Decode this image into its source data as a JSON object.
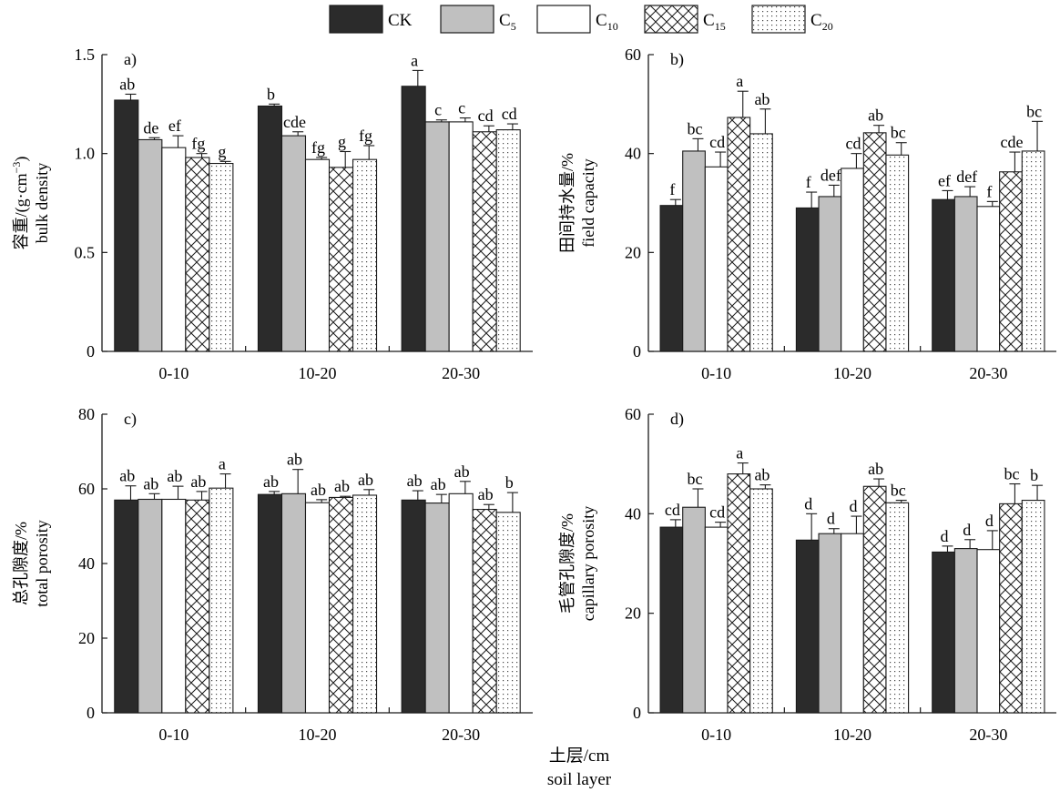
{
  "figure": {
    "xlabel_cn": "土层/cm",
    "xlabel_en": "soil layer"
  },
  "legend": {
    "items": [
      {
        "key": "CK",
        "label": "CK",
        "sub": "",
        "fill": "dark"
      },
      {
        "key": "C5",
        "label": "C",
        "sub": "5",
        "fill": "gray"
      },
      {
        "key": "C10",
        "label": "C",
        "sub": "10",
        "fill": "white"
      },
      {
        "key": "C15",
        "label": "C",
        "sub": "15",
        "fill": "crosshatch"
      },
      {
        "key": "C20",
        "label": "C",
        "sub": "20",
        "fill": "dots"
      }
    ]
  },
  "colors": {
    "CK": "#2b2b2b",
    "C5": "#c0c0c0",
    "C10": "#ffffff",
    "stroke": "#1a1a1a"
  },
  "chart_data": [
    {
      "type": "bar",
      "panel": "a)",
      "ylabel_cn": "容重/(g·cm",
      "ylabel_sup": "−3",
      "ylabel_tail": ")",
      "ylabel_en": "bulk density",
      "ylim": [
        0,
        1.5
      ],
      "yticks": [
        0,
        0.5,
        1.0,
        1.5
      ],
      "ytick_labels": [
        "0",
        "0.5",
        "1.0",
        "1.5"
      ],
      "categories": [
        "0-10",
        "10-20",
        "20-30"
      ],
      "series": [
        {
          "name": "CK",
          "values": [
            1.27,
            1.24,
            1.34
          ],
          "errors": [
            0.03,
            0.01,
            0.08
          ],
          "letters": [
            "ab",
            "b",
            "a"
          ]
        },
        {
          "name": "C5",
          "values": [
            1.07,
            1.09,
            1.16
          ],
          "errors": [
            0.01,
            0.02,
            0.01
          ],
          "letters": [
            "de",
            "cde",
            "c"
          ]
        },
        {
          "name": "C10",
          "values": [
            1.03,
            0.97,
            1.16
          ],
          "errors": [
            0.06,
            0.01,
            0.02
          ],
          "letters": [
            "ef",
            "fg",
            "c"
          ]
        },
        {
          "name": "C15",
          "values": [
            0.98,
            0.93,
            1.11
          ],
          "errors": [
            0.02,
            0.08,
            0.03
          ],
          "letters": [
            "fg",
            "g",
            "cd"
          ]
        },
        {
          "name": "C20",
          "values": [
            0.95,
            0.97,
            1.12
          ],
          "errors": [
            0.01,
            0.07,
            0.03
          ],
          "letters": [
            "g",
            "fg",
            "cd"
          ]
        }
      ]
    },
    {
      "type": "bar",
      "panel": "b)",
      "ylabel_cn": "田间持水量/%",
      "ylabel_sup": "",
      "ylabel_tail": "",
      "ylabel_en": "field capacity",
      "ylim": [
        0,
        60
      ],
      "yticks": [
        0,
        20,
        40,
        60
      ],
      "ytick_labels": [
        "0",
        "20",
        "40",
        "60"
      ],
      "categories": [
        "0-10",
        "10-20",
        "20-30"
      ],
      "series": [
        {
          "name": "CK",
          "values": [
            29.5,
            29.0,
            30.7
          ],
          "errors": [
            1.2,
            3.2,
            1.8
          ],
          "letters": [
            "f",
            "f",
            "ef"
          ]
        },
        {
          "name": "C5",
          "values": [
            40.5,
            31.3,
            31.3
          ],
          "errors": [
            2.5,
            2.3,
            2.0
          ],
          "letters": [
            "bc",
            "def",
            "def"
          ]
        },
        {
          "name": "C10",
          "values": [
            37.3,
            37.0,
            29.3
          ],
          "errors": [
            3.0,
            3.0,
            1.0
          ],
          "letters": [
            "cd",
            "cd",
            "f"
          ]
        },
        {
          "name": "C15",
          "values": [
            47.3,
            44.2,
            36.3
          ],
          "errors": [
            5.3,
            1.5,
            4.0
          ],
          "letters": [
            "a",
            "ab",
            "cde"
          ]
        },
        {
          "name": "C20",
          "values": [
            44.0,
            39.7,
            40.5
          ],
          "errors": [
            5.0,
            2.5,
            6.0
          ],
          "letters": [
            "ab",
            "bc",
            "bc"
          ]
        }
      ]
    },
    {
      "type": "bar",
      "panel": "c)",
      "ylabel_cn": "总孔隙度/%",
      "ylabel_sup": "",
      "ylabel_tail": "",
      "ylabel_en": "total porosity",
      "ylim": [
        0,
        80
      ],
      "yticks": [
        0,
        20,
        40,
        60,
        80
      ],
      "ytick_labels": [
        "0",
        "20",
        "40",
        "60",
        "80"
      ],
      "categories": [
        "0-10",
        "10-20",
        "20-30"
      ],
      "series": [
        {
          "name": "CK",
          "values": [
            57.0,
            58.5,
            57.0
          ],
          "errors": [
            3.8,
            0.8,
            2.5
          ],
          "letters": [
            "ab",
            "ab",
            "ab"
          ]
        },
        {
          "name": "C5",
          "values": [
            57.2,
            58.7,
            56.2
          ],
          "errors": [
            1.5,
            6.5,
            2.3
          ],
          "letters": [
            "ab",
            "ab",
            "ab"
          ]
        },
        {
          "name": "C10",
          "values": [
            57.2,
            56.3,
            58.7
          ],
          "errors": [
            3.5,
            0.8,
            3.3
          ],
          "letters": [
            "ab",
            "ab",
            "ab"
          ]
        },
        {
          "name": "C15",
          "values": [
            57.0,
            57.7,
            54.5
          ],
          "errors": [
            2.3,
            0.3,
            1.3
          ],
          "letters": [
            "ab",
            "ab",
            "ab"
          ]
        },
        {
          "name": "C20",
          "values": [
            60.2,
            58.3,
            53.7
          ],
          "errors": [
            3.8,
            1.5,
            5.3
          ],
          "letters": [
            "a",
            "ab",
            "b"
          ]
        }
      ]
    },
    {
      "type": "bar",
      "panel": "d)",
      "ylabel_cn": "毛管孔隙度/%",
      "ylabel_sup": "",
      "ylabel_tail": "",
      "ylabel_en": "capillary porosity",
      "ylim": [
        0,
        60
      ],
      "yticks": [
        0,
        20,
        40,
        60
      ],
      "ytick_labels": [
        "0",
        "20",
        "40",
        "60"
      ],
      "categories": [
        "0-10",
        "10-20",
        "20-30"
      ],
      "series": [
        {
          "name": "CK",
          "values": [
            37.3,
            34.7,
            32.3
          ],
          "errors": [
            1.5,
            5.3,
            1.2
          ],
          "letters": [
            "cd",
            "d",
            "d"
          ]
        },
        {
          "name": "C5",
          "values": [
            41.3,
            36.0,
            33.0
          ],
          "errors": [
            3.7,
            1.0,
            1.8
          ],
          "letters": [
            "bc",
            "d",
            "d"
          ]
        },
        {
          "name": "C10",
          "values": [
            37.3,
            36.0,
            32.8
          ],
          "errors": [
            1.0,
            3.5,
            3.8
          ],
          "letters": [
            "cd",
            "d",
            "d"
          ]
        },
        {
          "name": "C15",
          "values": [
            48.0,
            45.5,
            42.0
          ],
          "errors": [
            2.2,
            1.5,
            4.0
          ],
          "letters": [
            "a",
            "ab",
            "bc"
          ]
        },
        {
          "name": "C20",
          "values": [
            45.0,
            42.2,
            42.7
          ],
          "errors": [
            0.8,
            0.5,
            3.0
          ],
          "letters": [
            "ab",
            "bc",
            "b"
          ]
        }
      ]
    }
  ]
}
